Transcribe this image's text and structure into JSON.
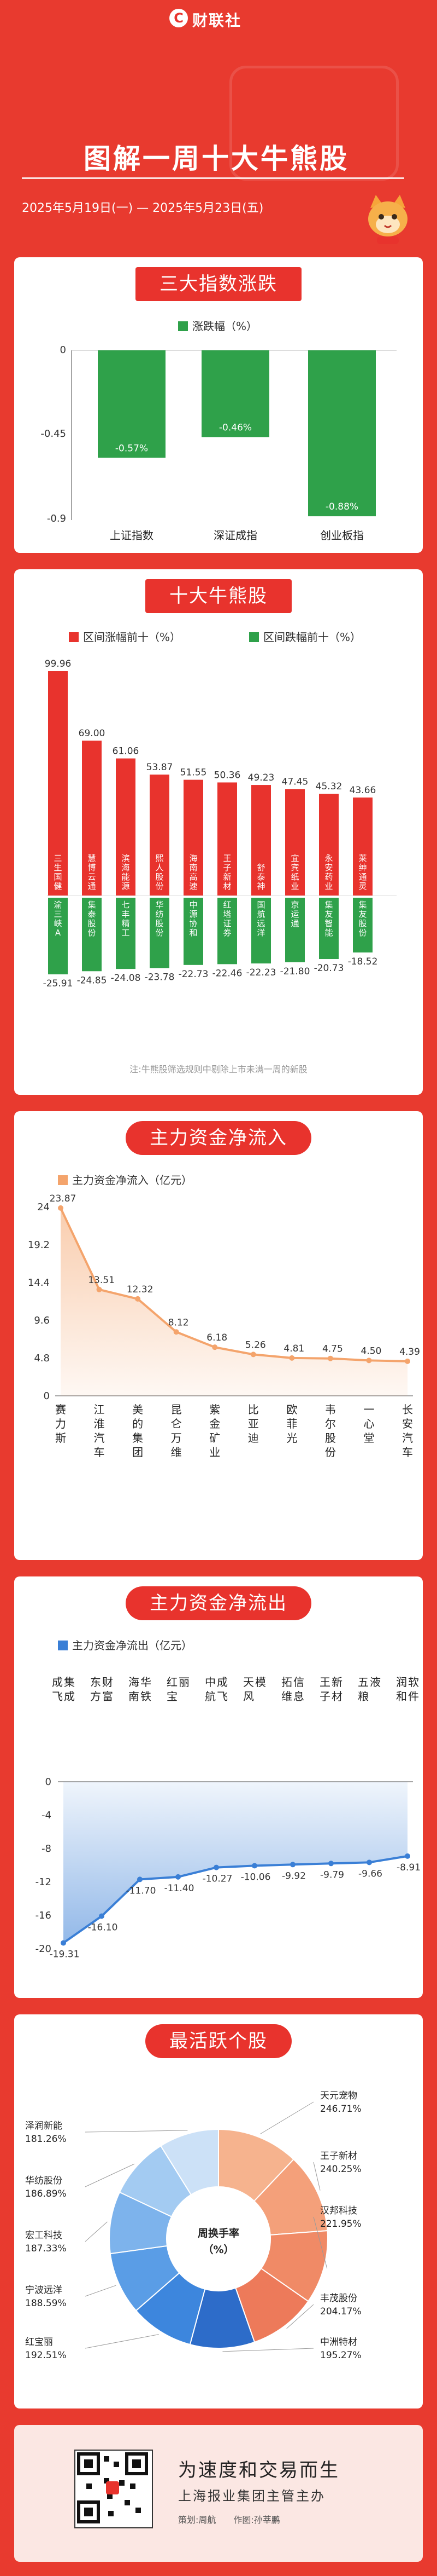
{
  "header": {
    "logo_text": "财联社",
    "title": "图解一周十大牛熊股",
    "date_range": "2025年5月19日(一) — 2025年5月23日(五)"
  },
  "colors": {
    "bg": "#e83a2f",
    "accent": "#e8332d",
    "up": "#e8332d",
    "down": "#2fa14a",
    "inflow": "#f4a46c",
    "outflow": "#3a7fd6"
  },
  "sections": {
    "indices_title": "三大指数涨跌",
    "bullbear_title": "十大牛熊股",
    "bullbear_note": "注:牛熊股筛选规则中剔除上市未满一周的新股",
    "inflow_title": "主力资金净流入",
    "outflow_title": "主力资金净流出",
    "active_title": "最活跃个股"
  },
  "footer": {
    "slogan": "为速度和交易而生",
    "subslogan": "上海报业集团主管主办",
    "credits": "策划:周航　　作图:孙莘鹏"
  },
  "chart_data": [
    {
      "type": "bar",
      "title": "三大指数涨跌",
      "series": [
        {
          "name": "涨跌幅（%）",
          "values": [
            -0.57,
            -0.46,
            -0.88
          ]
        }
      ],
      "categories": [
        "上证指数",
        "深证成指",
        "创业板指"
      ],
      "value_labels": [
        "-0.57%",
        "-0.46%",
        "-0.88%"
      ],
      "ylim": [
        -0.9,
        0
      ],
      "yticks": [
        "0",
        "-0.45",
        "-0.9"
      ],
      "color": "#2fa14a"
    },
    {
      "type": "bar",
      "title": "十大牛熊股",
      "series": [
        {
          "name": "区间涨幅前十（%）",
          "color": "#e8332d",
          "names": [
            "三生国健",
            "慧博云通",
            "滨海能源",
            "熙人股份",
            "海南高速",
            "王子新材",
            "舒泰神",
            "宜宾纸业",
            "永安药业",
            "莱绅通灵"
          ],
          "values": [
            99.96,
            69.0,
            61.06,
            53.87,
            51.55,
            50.36,
            49.23,
            47.45,
            45.32,
            43.66
          ]
        },
        {
          "name": "区间跌幅前十（%）",
          "color": "#2fa14a",
          "names": [
            "渝三峡A",
            "集泰股份",
            "七丰精工",
            "华纺股份",
            "中源协和",
            "红塔证券",
            "国航远洋",
            "京运通",
            "集友智能",
            "集友股份"
          ],
          "values": [
            -25.91,
            -24.85,
            -24.08,
            -23.78,
            -22.73,
            -22.46,
            -22.23,
            -21.8,
            -20.73,
            -18.52
          ]
        }
      ],
      "up_labels": [
        "99.96",
        "69.00",
        "61.06",
        "53.87",
        "51.55",
        "50.36",
        "49.23",
        "47.45",
        "45.32",
        "43.66"
      ],
      "down_labels": [
        "-25.91",
        "-24.85",
        "-24.08",
        "-23.78",
        "-22.73",
        "-22.46",
        "-22.23",
        "-21.80",
        "-20.73",
        "-18.52"
      ]
    },
    {
      "type": "area",
      "title": "主力资金净流入",
      "series": [
        {
          "name": "主力资金净流入（亿元）",
          "values": [
            23.87,
            13.51,
            12.32,
            8.12,
            6.18,
            5.26,
            4.81,
            4.75,
            4.5,
            4.39
          ]
        }
      ],
      "categories": [
        "赛力斯",
        "江淮汽车",
        "美的集团",
        "昆仑万维",
        "紫金矿业",
        "比亚迪",
        "欧菲光",
        "韦尔股份",
        "一心堂",
        "长安汽车"
      ],
      "value_labels": [
        "23.87",
        "13.51",
        "12.32",
        "8.12",
        "6.18",
        "5.26",
        "4.81",
        "4.75",
        "4.50",
        "4.39"
      ],
      "ylim": [
        0,
        24
      ],
      "yticks": [
        "24",
        "19.2",
        "14.4",
        "9.6",
        "4.8",
        "0"
      ],
      "color": "#f4a46c"
    },
    {
      "type": "area",
      "title": "主力资金净流出",
      "series": [
        {
          "name": "主力资金净流出（亿元）",
          "values": [
            -19.31,
            -16.1,
            -11.7,
            -11.4,
            -10.27,
            -10.06,
            -9.92,
            -9.79,
            -9.66,
            -8.91
          ]
        }
      ],
      "categories": [
        "成飞集成",
        "东方财富",
        "海南华铁",
        "红宝丽",
        "中航成飞",
        "天风模",
        "拓维信息",
        "王子新材",
        "五粮液",
        "润和软件"
      ],
      "value_labels": [
        "-19.31",
        "-16.10",
        "-11.70",
        "-11.40",
        "-10.27",
        "-10.06",
        "-9.92",
        "-9.79",
        "-9.66",
        "-8.91"
      ],
      "ylim": [
        -20,
        0
      ],
      "yticks": [
        "0",
        "-4",
        "-8",
        "-12",
        "-16",
        "-20"
      ],
      "color": "#3a7fd6"
    },
    {
      "type": "pie",
      "title": "最活跃个股",
      "center_label": "周换手率（%）",
      "slices": [
        {
          "name": "天元宠物",
          "value": 246.71,
          "label": "246.71%",
          "color": "#f6b38e"
        },
        {
          "name": "王子新材",
          "value": 240.25,
          "label": "240.25%",
          "color": "#f4a07a"
        },
        {
          "name": "汉邦科技",
          "value": 221.95,
          "label": "221.95%",
          "color": "#f08a66"
        },
        {
          "name": "丰茂股份",
          "value": 204.17,
          "label": "204.17%",
          "color": "#ed7a5a"
        },
        {
          "name": "中洲特材",
          "value": 195.27,
          "label": "195.27%",
          "color": "#2d6cc9"
        },
        {
          "name": "红宝丽",
          "value": 192.51,
          "label": "192.51%",
          "color": "#3d86dd"
        },
        {
          "name": "宁波远洋",
          "value": 188.59,
          "label": "188.59%",
          "color": "#5a9de6"
        },
        {
          "name": "宏工科技",
          "value": 187.33,
          "label": "187.33%",
          "color": "#7db3ec"
        },
        {
          "name": "华纺股份",
          "value": 186.89,
          "label": "186.89%",
          "color": "#a3cbf2"
        },
        {
          "name": "泽润新能",
          "value": 181.26,
          "label": "181.26%",
          "color": "#cce1f7"
        }
      ]
    }
  ]
}
